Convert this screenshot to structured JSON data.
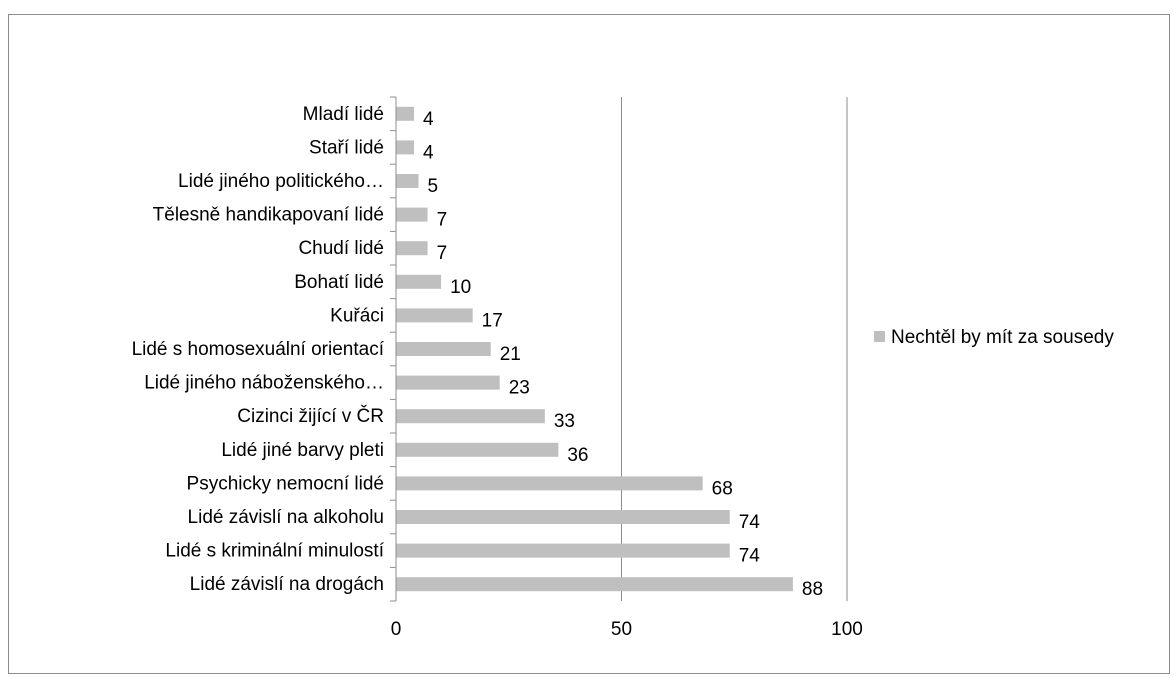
{
  "chart_data": {
    "type": "bar",
    "orientation": "horizontal",
    "categories": [
      "Mladí lidé",
      "Staří lidé",
      "Lidé jiného politického…",
      "Tělesně handikapovaní lidé",
      "Chudí lidé",
      "Bohatí lidé",
      "Kuřáci",
      "Lidé s homosexuální orientací",
      "Lidé jiného náboženského…",
      "Cizinci žijící v ČR",
      "Lidé jiné barvy pleti",
      "Psychicky nemocní lidé",
      "Lidé závislí na alkoholu",
      "Lidé s kriminální minulostí",
      "Lidé závislí na drogách"
    ],
    "series": [
      {
        "name": "Nechtěl by mít za sousedy",
        "values": [
          4,
          4,
          5,
          7,
          7,
          10,
          17,
          21,
          23,
          33,
          36,
          68,
          74,
          74,
          88
        ],
        "color": "#bfbfbf"
      }
    ],
    "xlim": [
      0,
      100
    ],
    "ticks": [
      "0",
      "50",
      "100"
    ],
    "grid": "vertical",
    "legend_position": "right",
    "title": "",
    "xlabel": "",
    "ylabel": ""
  }
}
